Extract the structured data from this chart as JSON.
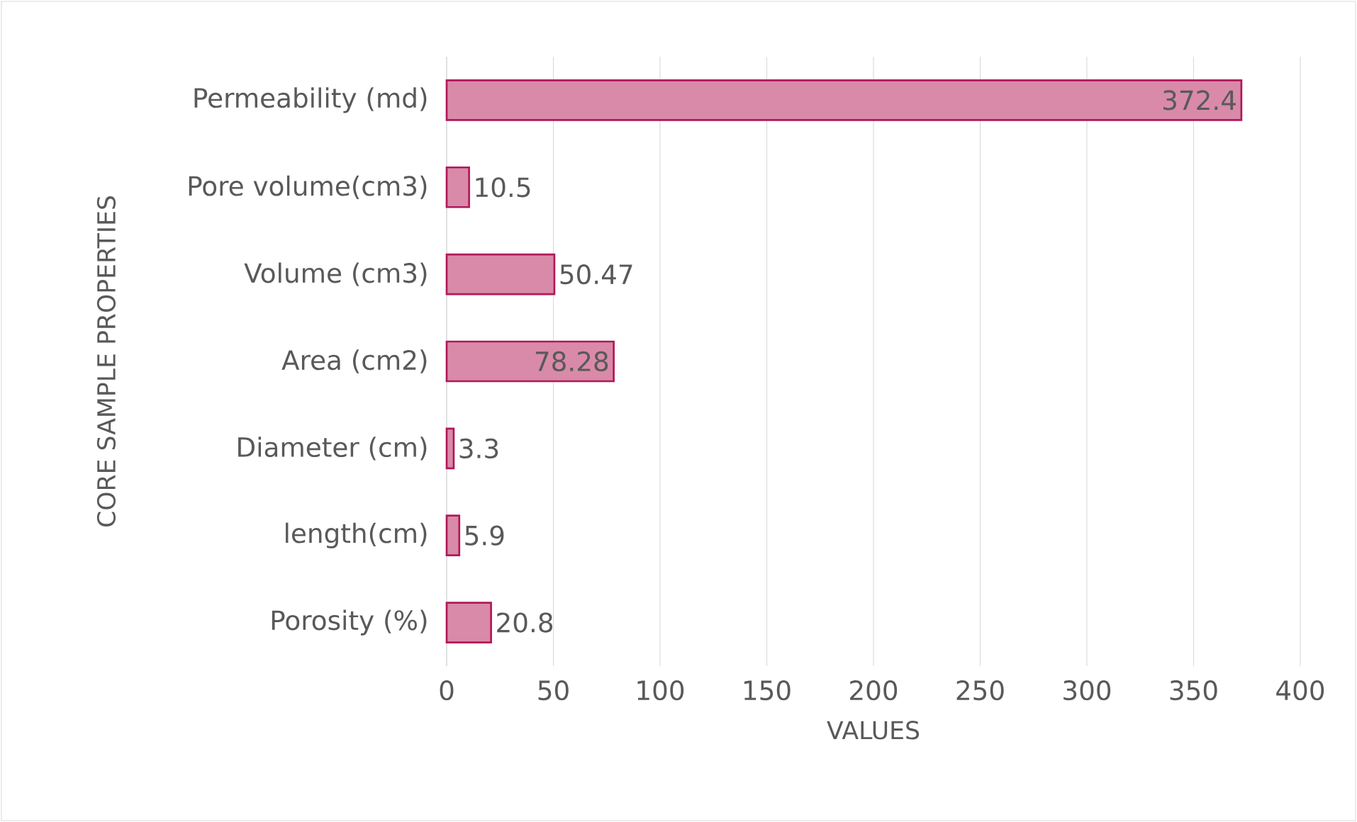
{
  "chart_data": {
    "type": "bar",
    "orientation": "horizontal",
    "xlabel": "VALUES",
    "ylabel": "CORE  SAMPLE PROPERTIES",
    "categories": [
      "Permeability (md)",
      "Pore volume(cm3)",
      "Volume (cm3)",
      "Area (cm2)",
      "Diameter (cm)",
      "length(cm)",
      "Porosity (%)"
    ],
    "values": [
      372.4,
      10.5,
      50.47,
      78.28,
      3.3,
      5.9,
      20.8
    ],
    "color": "#d98aa8",
    "data_labels": true,
    "xlim": [
      0,
      400
    ],
    "xticks": [
      0,
      50,
      100,
      150,
      200,
      250,
      300,
      350,
      400
    ],
    "grid": "x"
  }
}
